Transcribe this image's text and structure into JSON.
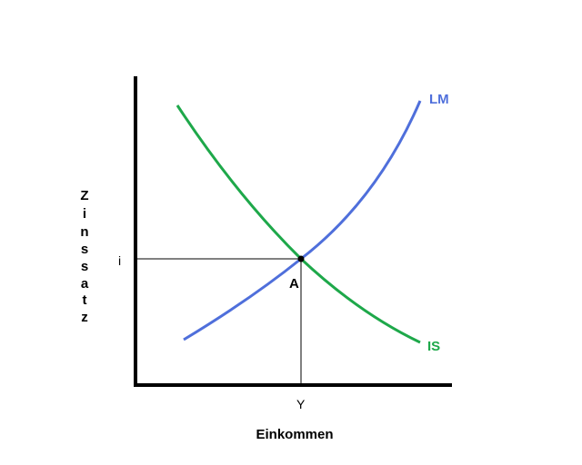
{
  "diagram": {
    "xlabel": "Einkommen",
    "ylabel_letters": [
      "Z",
      "i",
      "n",
      "s",
      "s",
      "a",
      "t",
      "z"
    ],
    "x_marker_label": "Y",
    "y_marker_label": "i",
    "equilibrium_label": "A",
    "curves": [
      {
        "name": "LM",
        "color": "#4f6fdb"
      },
      {
        "name": "IS",
        "color": "#1ea84a"
      }
    ],
    "axis_color": "#000000",
    "guide_color": "#000000"
  }
}
